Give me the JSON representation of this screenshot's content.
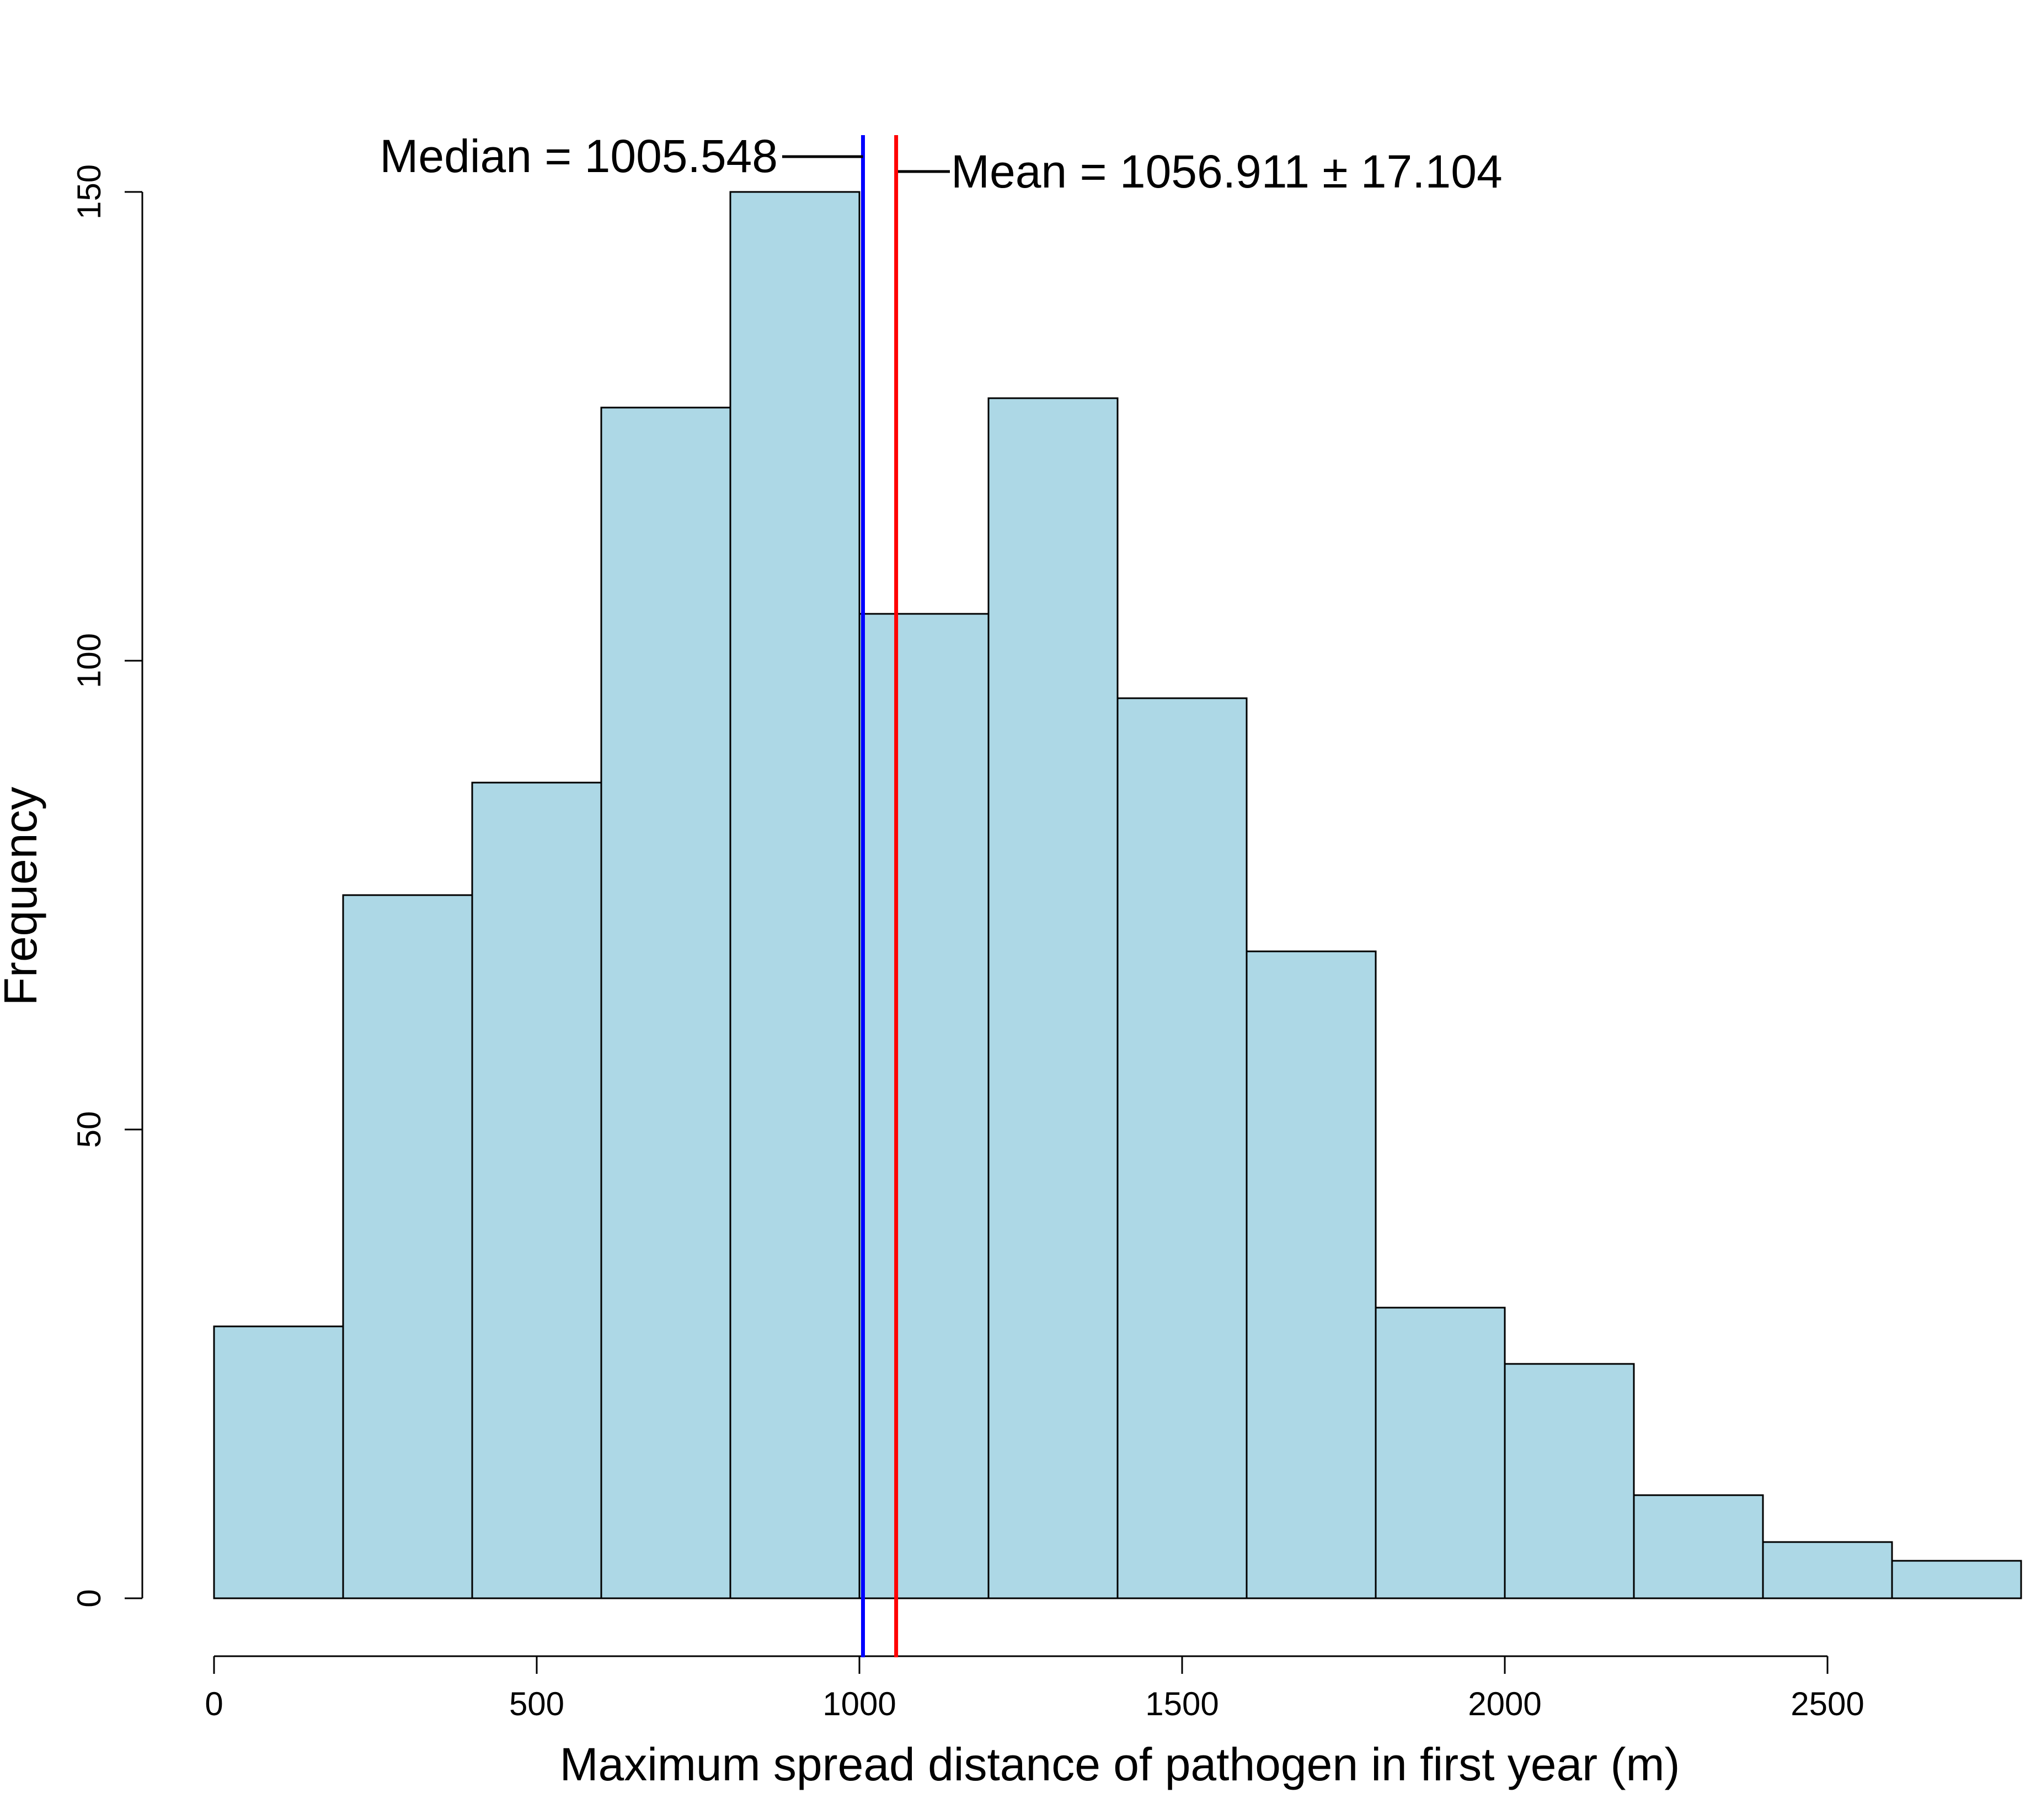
{
  "chart_data": {
    "type": "bar",
    "title": "",
    "xlabel": "Maximum spread distance of pathogen in first year (m)",
    "ylabel": "Frequency",
    "bin_edges": [
      0,
      200,
      400,
      600,
      800,
      1000,
      1200,
      1400,
      1600,
      1800,
      2000,
      2200,
      2400,
      2600,
      2800
    ],
    "values": [
      29,
      75,
      87,
      127,
      150,
      105,
      128,
      96,
      69,
      31,
      25,
      11,
      6,
      4
    ],
    "xlim": [
      0,
      2800
    ],
    "ylim": [
      0,
      150
    ],
    "x_ticks": [
      0,
      500,
      1000,
      1500,
      2000,
      2500
    ],
    "y_ticks": [
      0,
      50,
      100,
      150
    ],
    "x_tick_labels": [
      "0",
      "500",
      "1000",
      "1500",
      "2000",
      "2500"
    ],
    "y_tick_labels": [
      "0",
      "50",
      "100",
      "150"
    ],
    "bar_color": "#add8e6",
    "bar_edge_color": "#000000",
    "grid": false,
    "reference_lines": [
      {
        "value": 1005.548,
        "color": "#0000ff",
        "label": "Median = 1005.548"
      },
      {
        "value": 1056.911,
        "color": "#ff0000",
        "label": "Mean = 1056.911 ± 17.104"
      }
    ]
  }
}
